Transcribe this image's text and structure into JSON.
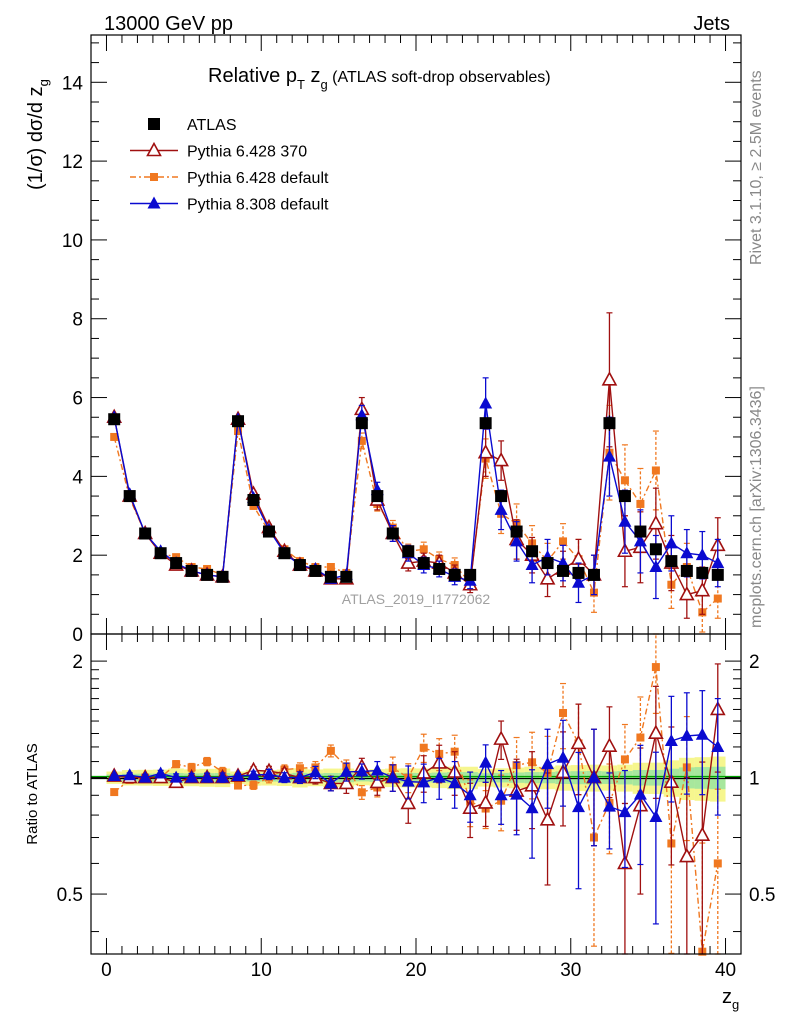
{
  "header": {
    "left": "13000 GeV pp",
    "right": "Jets"
  },
  "side_texts": {
    "top": "Rivet 3.1.10, ≥ 2.5M events",
    "bottom": "mcplots.cern.ch [arXiv:1306.3436]"
  },
  "chart_data": {
    "type": "scatter",
    "title": "Relative p_T z_g (ATLAS soft-drop observables)",
    "title_parts": {
      "a": "Relative p",
      "b": "T",
      "c": " z",
      "d": "g",
      "e": " (ATLAS soft-drop observables)"
    },
    "watermark": "ATLAS_2019_I1772062",
    "xlabel": "z_g",
    "xlabel_parts": {
      "main": "z",
      "sub": "g"
    },
    "ylabel": "(1/σ) dσ/d z_g",
    "ylabel_parts": {
      "main": "(1/σ) dσ/d z",
      "sub": "g"
    },
    "ratio_ylabel": "Ratio to ATLAS",
    "xlim": [
      -1,
      41
    ],
    "ylim": [
      0,
      15.2
    ],
    "ratio_ylim": [
      0.35,
      2.35
    ],
    "x_ticks": [
      "0",
      "10",
      "20",
      "30",
      "40"
    ],
    "y_ticks": [
      "0",
      "2",
      "4",
      "6",
      "8",
      "10",
      "12",
      "14"
    ],
    "ratio_ticks": [
      "0.5",
      "1",
      "2"
    ],
    "x": [
      0.5,
      1.5,
      2.5,
      3.5,
      4.5,
      5.5,
      6.5,
      7.5,
      8.5,
      9.5,
      10.5,
      11.5,
      12.5,
      13.5,
      14.5,
      15.5,
      16.5,
      17.5,
      18.5,
      19.5,
      20.5,
      21.5,
      22.5,
      23.5,
      24.5,
      25.5,
      26.5,
      27.5,
      28.5,
      29.5,
      30.5,
      31.5,
      32.5,
      33.5,
      34.5,
      35.5,
      36.5,
      37.5,
      38.5,
      39.5
    ],
    "series": [
      {
        "name": "ATLAS",
        "color": "#000000",
        "marker": "square",
        "values": [
          5.45,
          3.5,
          2.55,
          2.05,
          1.8,
          1.6,
          1.5,
          1.45,
          5.4,
          3.4,
          2.6,
          2.05,
          1.75,
          1.6,
          1.45,
          1.45,
          5.35,
          3.5,
          2.55,
          2.1,
          1.8,
          1.65,
          1.5,
          1.5,
          5.35,
          3.5,
          2.6,
          2.1,
          1.8,
          1.6,
          1.55,
          1.5,
          5.35,
          3.5,
          2.6,
          2.15,
          1.85,
          1.6,
          1.55,
          1.5
        ],
        "errors": [
          0.1,
          0.08,
          0.06,
          0.05,
          0.05,
          0.04,
          0.04,
          0.04,
          0.1,
          0.08,
          0.06,
          0.05,
          0.05,
          0.04,
          0.04,
          0.04,
          0.12,
          0.09,
          0.07,
          0.06,
          0.05,
          0.05,
          0.05,
          0.05,
          0.14,
          0.1,
          0.08,
          0.07,
          0.06,
          0.06,
          0.06,
          0.06,
          0.2,
          0.14,
          0.12,
          0.1,
          0.1,
          0.1,
          0.1,
          0.1
        ]
      },
      {
        "name": "Pythia 6.428 370",
        "color": "#a01010",
        "marker": "triangle-open",
        "values": [
          5.5,
          3.5,
          2.55,
          2.05,
          1.75,
          1.6,
          1.5,
          1.45,
          5.45,
          3.55,
          2.7,
          2.1,
          1.75,
          1.6,
          1.4,
          1.4,
          5.7,
          3.4,
          2.55,
          1.8,
          1.85,
          1.8,
          1.55,
          1.25,
          4.6,
          4.4,
          2.4,
          2.0,
          1.4,
          1.65,
          1.9,
          1.5,
          6.45,
          2.1,
          2.2,
          2.8,
          1.8,
          1.0,
          1.1,
          2.25
        ],
        "errors": [
          0.05,
          0.05,
          0.05,
          0.04,
          0.04,
          0.04,
          0.04,
          0.04,
          0.08,
          0.08,
          0.08,
          0.06,
          0.06,
          0.06,
          0.06,
          0.08,
          0.3,
          0.25,
          0.2,
          0.2,
          0.2,
          0.2,
          0.2,
          0.2,
          0.6,
          0.5,
          0.5,
          0.45,
          0.45,
          0.45,
          0.5,
          0.5,
          1.7,
          0.9,
          0.9,
          0.9,
          0.7,
          0.6,
          0.6,
          0.7
        ]
      },
      {
        "name": "Pythia 6.428 default",
        "color": "#f07820",
        "marker": "square-small",
        "values": [
          5.0,
          3.45,
          2.55,
          2.05,
          1.95,
          1.7,
          1.65,
          1.5,
          5.15,
          3.25,
          2.6,
          2.15,
          1.85,
          1.7,
          1.7,
          1.55,
          4.9,
          3.3,
          2.7,
          2.1,
          2.15,
          1.9,
          1.75,
          1.3,
          4.45,
          3.05,
          2.8,
          2.3,
          1.85,
          2.35,
          1.9,
          1.05,
          4.6,
          3.9,
          3.3,
          4.15,
          1.25,
          1.7,
          0.55,
          0.9
        ],
        "errors": [
          0.05,
          0.05,
          0.05,
          0.04,
          0.04,
          0.04,
          0.04,
          0.04,
          0.08,
          0.08,
          0.08,
          0.06,
          0.06,
          0.06,
          0.06,
          0.06,
          0.2,
          0.18,
          0.18,
          0.18,
          0.18,
          0.18,
          0.18,
          0.18,
          0.5,
          0.5,
          0.5,
          0.45,
          0.45,
          0.45,
          0.5,
          0.5,
          1.2,
          0.9,
          0.9,
          1.0,
          0.6,
          0.6,
          0.5,
          0.5
        ]
      },
      {
        "name": "Pythia 8.308 default",
        "color": "#0a0ad0",
        "marker": "triangle",
        "values": [
          5.5,
          3.55,
          2.55,
          2.1,
          1.8,
          1.6,
          1.5,
          1.45,
          5.45,
          3.45,
          2.65,
          2.05,
          1.75,
          1.65,
          1.4,
          1.5,
          5.55,
          3.65,
          2.55,
          2.05,
          1.75,
          1.65,
          1.45,
          1.35,
          5.85,
          3.15,
          2.35,
          1.75,
          1.95,
          1.8,
          1.3,
          1.5,
          4.5,
          2.85,
          2.35,
          1.7,
          2.3,
          2.05,
          2.0,
          1.8
        ],
        "errors": [
          0.05,
          0.05,
          0.05,
          0.04,
          0.04,
          0.04,
          0.04,
          0.04,
          0.08,
          0.08,
          0.08,
          0.06,
          0.06,
          0.06,
          0.06,
          0.08,
          0.25,
          0.2,
          0.2,
          0.2,
          0.2,
          0.2,
          0.2,
          0.2,
          0.65,
          0.5,
          0.5,
          0.45,
          0.45,
          0.45,
          0.5,
          0.5,
          1.0,
          0.8,
          0.8,
          0.8,
          0.7,
          0.6,
          0.6,
          0.6
        ]
      }
    ]
  }
}
